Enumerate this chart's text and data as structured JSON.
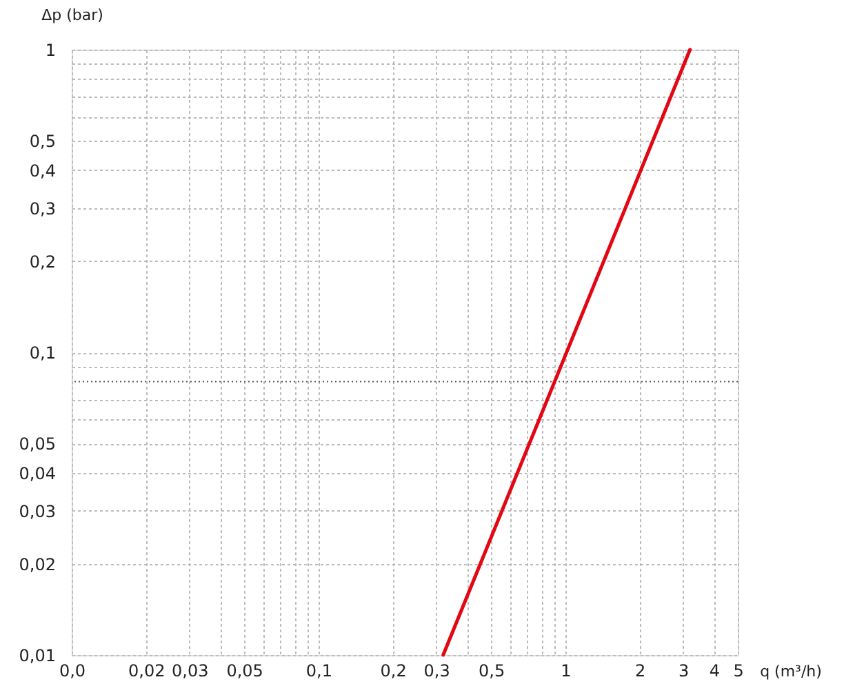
{
  "chart_data": {
    "type": "line",
    "xlabel": "q (m³/h)",
    "ylabel": "Δp (bar)",
    "log": "xy",
    "grid": true,
    "marker": "none",
    "line_style": "solid",
    "xlim": [
      0.01,
      5
    ],
    "ylim": [
      0.01,
      1
    ],
    "xticks": [
      {
        "value": 0.01,
        "label": "0,0"
      },
      {
        "value": 0.02,
        "label": "0,02"
      },
      {
        "value": 0.03,
        "label": "0,03"
      },
      {
        "value": 0.04,
        "label": null
      },
      {
        "value": 0.05,
        "label": "0,05"
      },
      {
        "value": 0.06,
        "label": null
      },
      {
        "value": 0.07,
        "label": null
      },
      {
        "value": 0.08,
        "label": null
      },
      {
        "value": 0.09,
        "label": null
      },
      {
        "value": 0.1,
        "label": "0,1"
      },
      {
        "value": 0.2,
        "label": "0,2"
      },
      {
        "value": 0.3,
        "label": "0,3"
      },
      {
        "value": 0.4,
        "label": null
      },
      {
        "value": 0.5,
        "label": "0,5"
      },
      {
        "value": 0.6,
        "label": null
      },
      {
        "value": 0.7,
        "label": null
      },
      {
        "value": 0.8,
        "label": null
      },
      {
        "value": 0.9,
        "label": null
      },
      1,
      2,
      3,
      4,
      5
    ],
    "yticks": [
      {
        "value": 0.01,
        "label": "0,01"
      },
      {
        "value": 0.02,
        "label": "0,02"
      },
      {
        "value": 0.03,
        "label": "0,03"
      },
      {
        "value": 0.04,
        "label": "0,04"
      },
      {
        "value": 0.05,
        "label": "0,05"
      },
      {
        "value": 0.06,
        "label": null
      },
      {
        "value": 0.07,
        "label": null
      },
      {
        "value": 0.09,
        "label": null
      },
      {
        "value": 0.1,
        "label": "0,1"
      },
      {
        "value": 0.2,
        "label": "0,2"
      },
      {
        "value": 0.3,
        "label": "0,3"
      },
      {
        "value": 0.4,
        "label": "0,4"
      },
      {
        "value": 0.5,
        "label": "0,5"
      },
      {
        "value": 0.6,
        "label": null
      },
      {
        "value": 0.7,
        "label": null
      },
      {
        "value": 0.8,
        "label": null
      },
      {
        "value": 0.9,
        "label": null
      },
      1
    ],
    "ref_lines": [
      {
        "axis": "y",
        "value": 0.08,
        "color": "#555555",
        "line_style": "dotted"
      }
    ],
    "series": [
      {
        "color": "#e30613",
        "x": [
          0.32,
          3.2
        ],
        "values": [
          0.01,
          1
        ]
      }
    ]
  }
}
